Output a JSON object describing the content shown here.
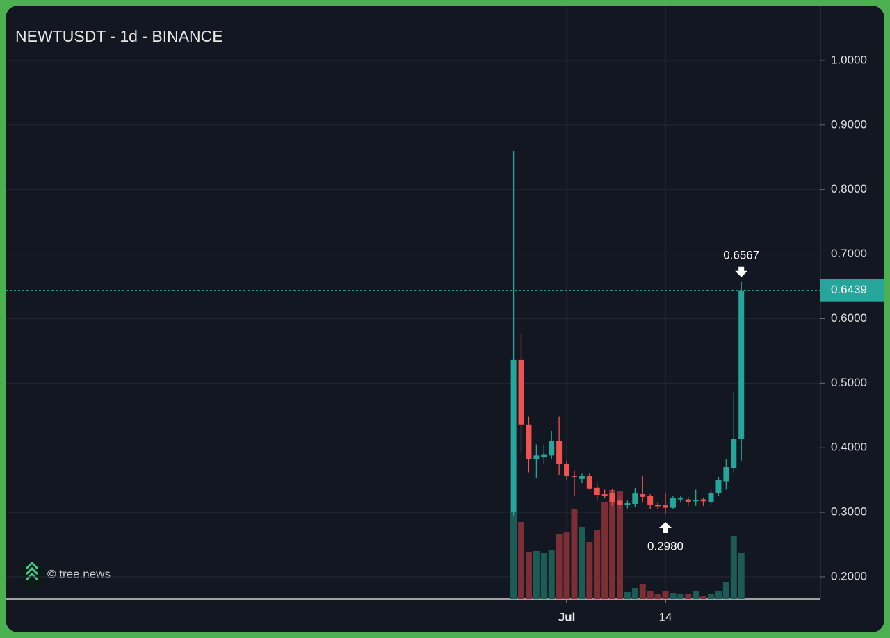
{
  "chart_data": {
    "type": "candlestick",
    "title": "NEWTUSDT - 1d - BINANCE",
    "categories": [
      null,
      null,
      null,
      null,
      null,
      null,
      null,
      "Jul",
      null,
      null,
      null,
      null,
      null,
      null,
      null,
      null,
      null,
      null,
      null,
      null,
      "14",
      null,
      null,
      null,
      null,
      null,
      null,
      null,
      null,
      null,
      null
    ],
    "open": [
      0.3,
      0.536,
      0.436,
      0.383,
      0.385,
      0.388,
      0.411,
      0.375,
      0.356,
      0.352,
      0.356,
      0.338,
      0.328,
      0.33,
      0.318,
      0.311,
      0.313,
      0.328,
      0.325,
      0.311,
      0.311,
      0.307,
      0.32,
      0.32,
      0.317,
      0.32,
      0.316,
      0.33,
      0.348,
      0.368,
      0.414
    ],
    "high": [
      0.86,
      0.577,
      0.448,
      0.405,
      0.405,
      0.426,
      0.448,
      0.38,
      0.365,
      0.36,
      0.36,
      0.345,
      0.335,
      0.336,
      0.325,
      0.318,
      0.338,
      0.356,
      0.328,
      0.315,
      0.33,
      0.325,
      0.325,
      0.324,
      0.335,
      0.322,
      0.335,
      0.355,
      0.383,
      0.486,
      0.6567
    ],
    "low": [
      0.295,
      0.392,
      0.362,
      0.353,
      0.375,
      0.383,
      0.358,
      0.35,
      0.325,
      0.345,
      0.335,
      0.318,
      0.322,
      0.31,
      0.305,
      0.306,
      0.308,
      0.315,
      0.305,
      0.305,
      0.298,
      0.305,
      0.315,
      0.31,
      0.31,
      0.31,
      0.312,
      0.325,
      0.335,
      0.362,
      0.38
    ],
    "close": [
      0.536,
      0.436,
      0.383,
      0.388,
      0.39,
      0.411,
      0.375,
      0.356,
      0.354,
      0.356,
      0.337,
      0.327,
      0.325,
      0.316,
      0.311,
      0.314,
      0.329,
      0.324,
      0.312,
      0.31,
      0.307,
      0.322,
      0.322,
      0.316,
      0.319,
      0.317,
      0.33,
      0.35,
      0.37,
      0.414,
      0.6439
    ],
    "volume": [
      125,
      111,
      68,
      69,
      66,
      70,
      93,
      96,
      129,
      104,
      82,
      99,
      139,
      157,
      156,
      10,
      16,
      21,
      11,
      7,
      12,
      9,
      7,
      7,
      11,
      5,
      7,
      12,
      24,
      91,
      66
    ],
    "up_color": "#26a69a",
    "down_color": "#ef5350",
    "up_volume_color": "#1d5b57",
    "down_volume_color": "#7b2f35",
    "ylim": [
      0.1655,
      1.085
    ],
    "yticks": [
      {
        "value": 0.2,
        "label": "0.2000"
      },
      {
        "value": 0.3,
        "label": "0.3000"
      },
      {
        "value": 0.4,
        "label": "0.4000"
      },
      {
        "value": 0.5,
        "label": "0.5000"
      },
      {
        "value": 0.6,
        "label": "0.6000"
      },
      {
        "value": 0.7,
        "label": "0.7000"
      },
      {
        "value": 0.8,
        "label": "0.8000"
      },
      {
        "value": 0.9,
        "label": "0.9000"
      },
      {
        "value": 1.0,
        "label": "1.0000"
      }
    ],
    "grid": true,
    "last_price": {
      "value": 0.6439,
      "label": "0.6439"
    },
    "annotations": [
      {
        "value": 0.6567,
        "label": "0.6567"
      },
      {
        "value": 0.298,
        "label": "0.2980"
      }
    ],
    "watermark": "© tree.news"
  }
}
